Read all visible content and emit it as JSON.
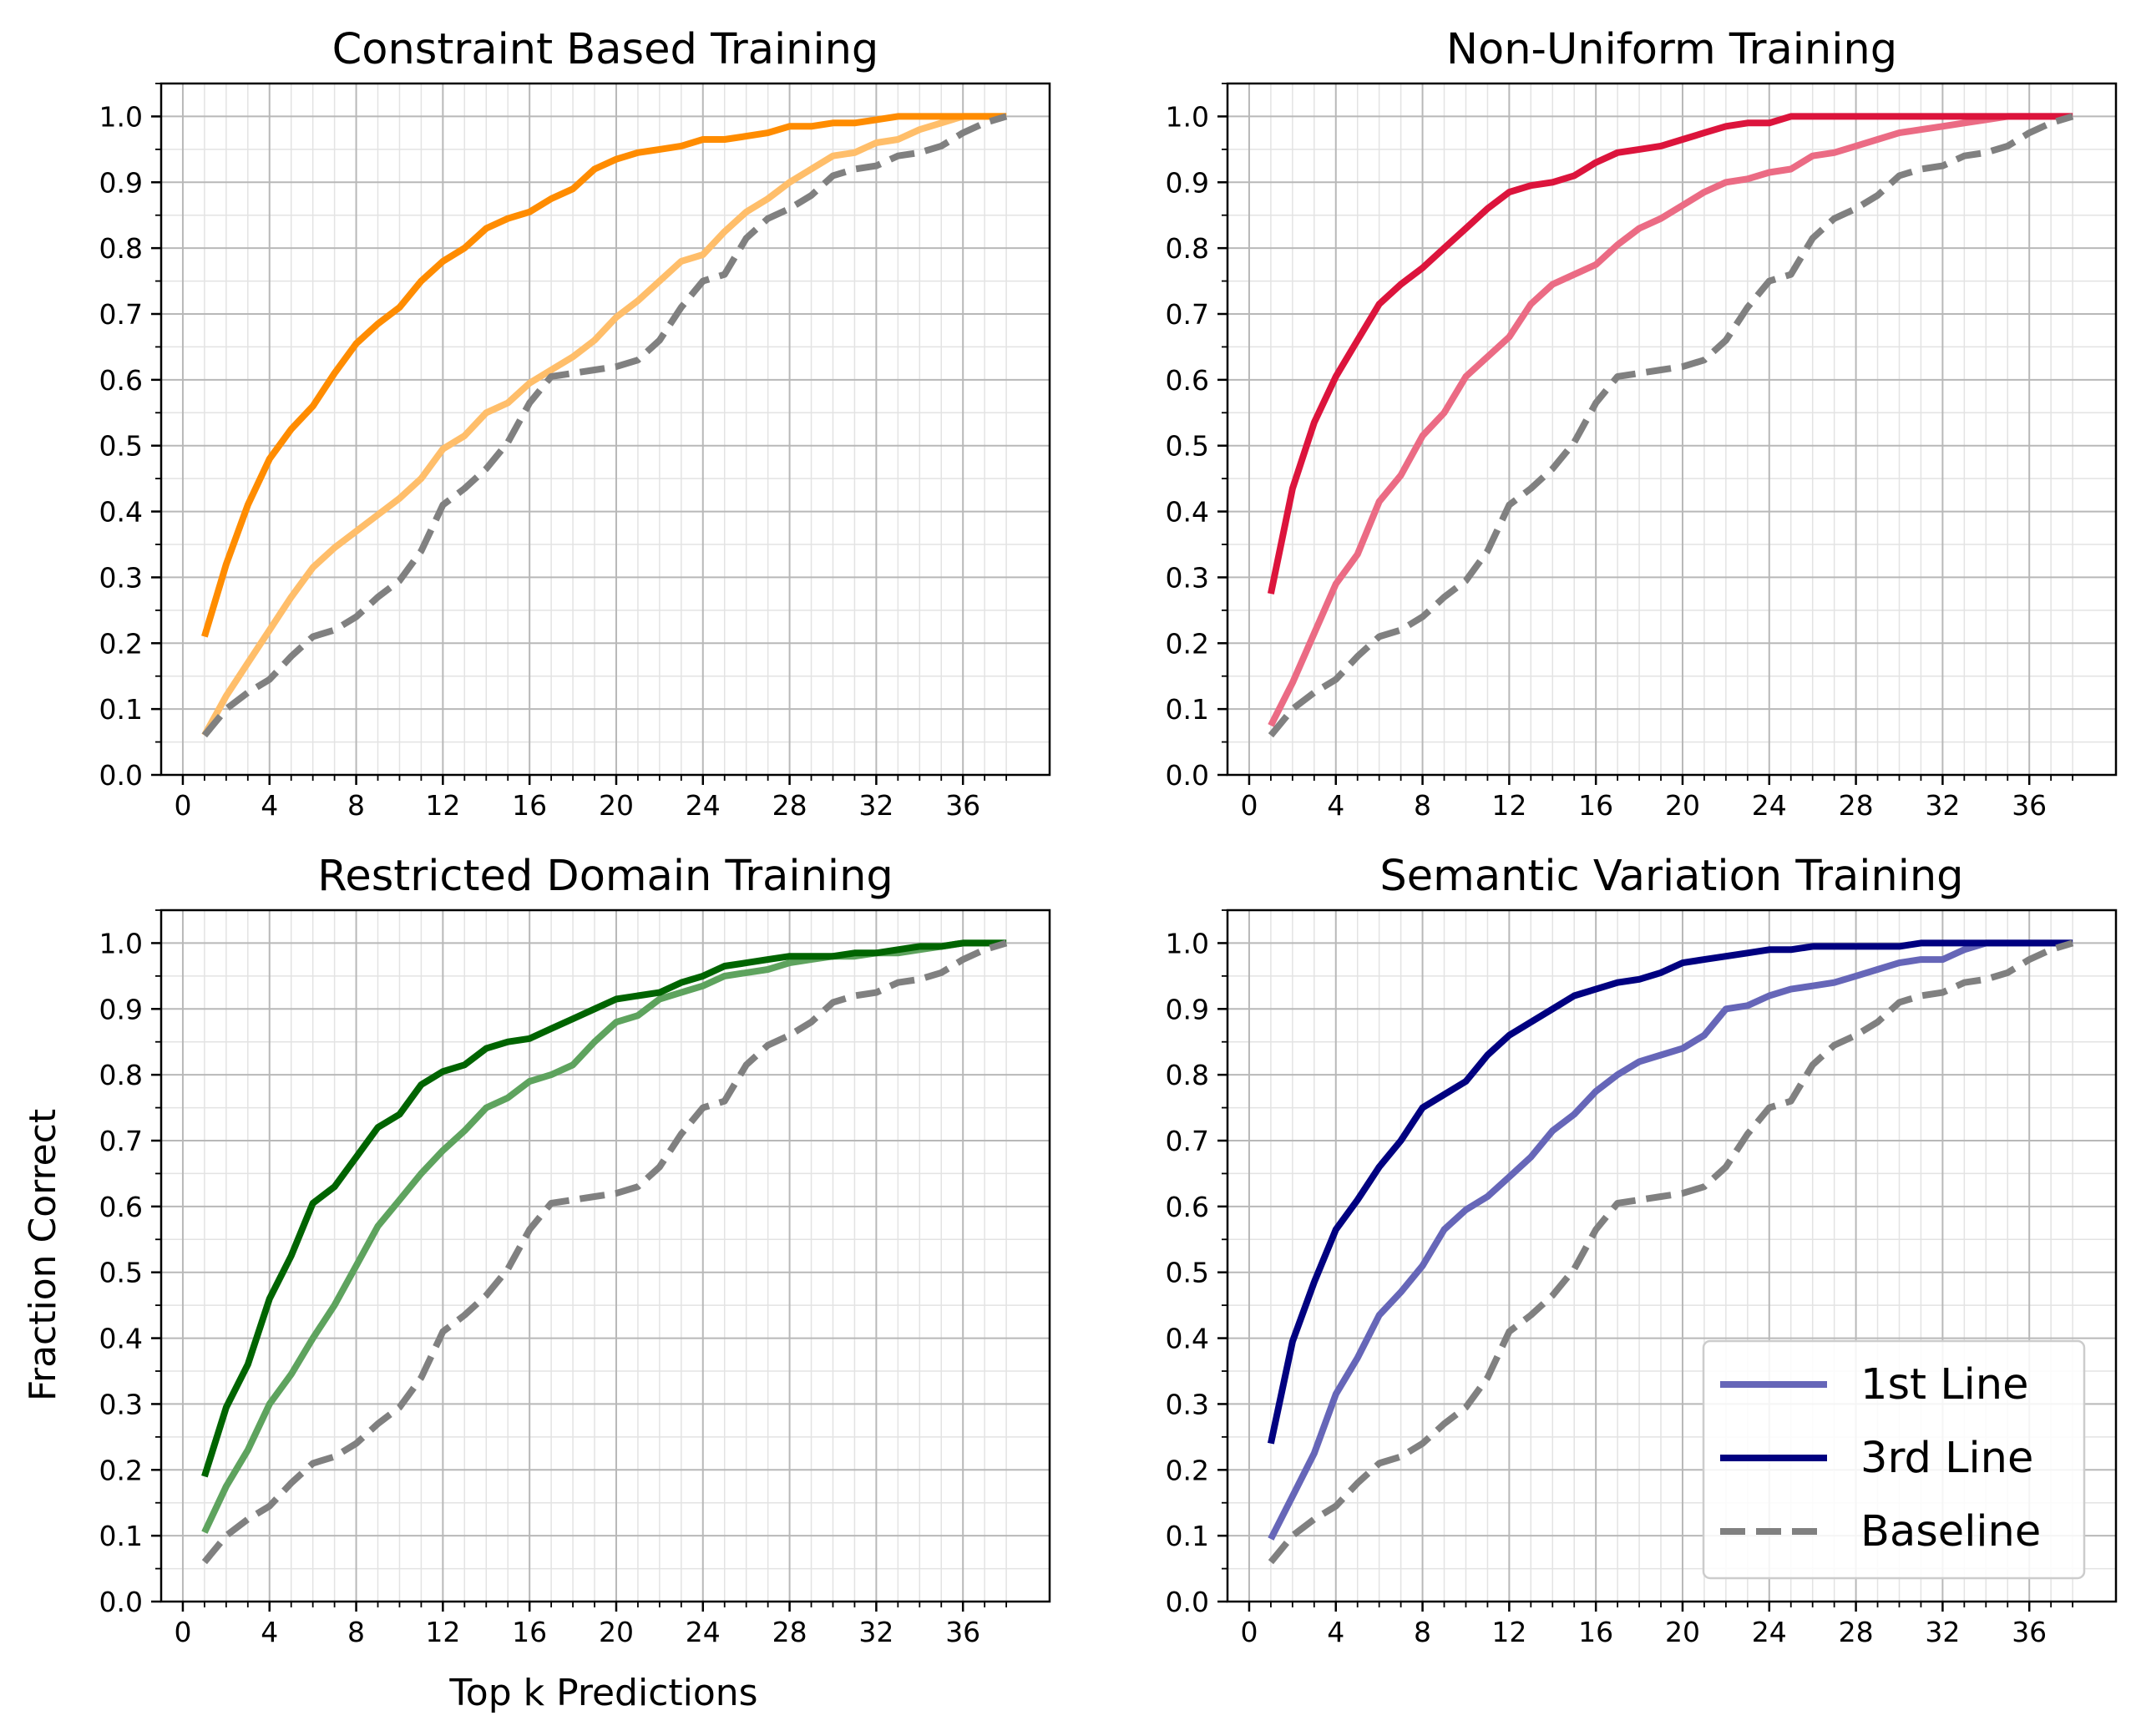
{
  "figure": {
    "ylabel": "Fraction Correct",
    "xlabel": "Top k Predictions"
  },
  "legend": {
    "placement": "lower-right",
    "entries": [
      {
        "label": "1st Line",
        "color": "#6666b8",
        "style": "solid"
      },
      {
        "label": "3rd Line",
        "color": "#000080",
        "style": "solid"
      },
      {
        "label": "Baseline",
        "color": "#808080",
        "style": "dashed"
      }
    ]
  },
  "chart_data": [
    {
      "type": "line",
      "title": "Constraint Based Training",
      "xlim": [
        -1,
        40
      ],
      "ylim": [
        0,
        1.05
      ],
      "xticks": [
        0,
        4,
        8,
        12,
        16,
        20,
        24,
        28,
        32,
        36
      ],
      "yticks": [
        0.0,
        0.1,
        0.2,
        0.3,
        0.4,
        0.5,
        0.6,
        0.7,
        0.8,
        0.9,
        1.0
      ],
      "grid": true,
      "x": [
        1,
        2,
        3,
        4,
        5,
        6,
        7,
        8,
        9,
        10,
        11,
        12,
        13,
        14,
        15,
        16,
        17,
        18,
        19,
        20,
        21,
        22,
        23,
        24,
        25,
        26,
        27,
        28,
        29,
        30,
        31,
        32,
        33,
        34,
        35,
        36,
        37,
        38
      ],
      "series": [
        {
          "name": "1st Line",
          "color": "#ffbe6a",
          "style": "solid",
          "values": [
            0.06,
            0.12,
            0.17,
            0.22,
            0.27,
            0.315,
            0.345,
            0.37,
            0.395,
            0.42,
            0.45,
            0.495,
            0.515,
            0.55,
            0.565,
            0.595,
            0.615,
            0.635,
            0.66,
            0.695,
            0.72,
            0.75,
            0.78,
            0.79,
            0.825,
            0.855,
            0.875,
            0.9,
            0.92,
            0.94,
            0.945,
            0.96,
            0.965,
            0.98,
            0.99,
            1.0,
            1.0,
            1.0
          ]
        },
        {
          "name": "3rd Line",
          "color": "#ff8c00",
          "style": "solid",
          "values": [
            0.21,
            0.32,
            0.41,
            0.48,
            0.525,
            0.56,
            0.61,
            0.655,
            0.685,
            0.71,
            0.75,
            0.78,
            0.8,
            0.83,
            0.845,
            0.855,
            0.875,
            0.89,
            0.92,
            0.935,
            0.945,
            0.95,
            0.955,
            0.965,
            0.965,
            0.97,
            0.975,
            0.985,
            0.985,
            0.99,
            0.99,
            0.995,
            1.0,
            1.0,
            1.0,
            1.0,
            1.0,
            1.0
          ]
        },
        {
          "name": "Baseline",
          "color": "#808080",
          "style": "dashed",
          "values": [
            0.06,
            0.1,
            0.125,
            0.145,
            0.18,
            0.21,
            0.22,
            0.24,
            0.27,
            0.295,
            0.34,
            0.41,
            0.435,
            0.465,
            0.505,
            0.565,
            0.605,
            0.61,
            0.615,
            0.62,
            0.63,
            0.66,
            0.71,
            0.75,
            0.76,
            0.815,
            0.845,
            0.86,
            0.88,
            0.91,
            0.92,
            0.925,
            0.94,
            0.945,
            0.955,
            0.975,
            0.99,
            1.0
          ]
        }
      ]
    },
    {
      "type": "line",
      "title": "Non-Uniform Training",
      "xlim": [
        -1,
        40
      ],
      "ylim": [
        0,
        1.05
      ],
      "xticks": [
        0,
        4,
        8,
        12,
        16,
        20,
        24,
        28,
        32,
        36
      ],
      "yticks": [
        0.0,
        0.1,
        0.2,
        0.3,
        0.4,
        0.5,
        0.6,
        0.7,
        0.8,
        0.9,
        1.0
      ],
      "grid": true,
      "x": [
        1,
        2,
        3,
        4,
        5,
        6,
        7,
        8,
        9,
        10,
        11,
        12,
        13,
        14,
        15,
        16,
        17,
        18,
        19,
        20,
        21,
        22,
        23,
        24,
        25,
        26,
        27,
        28,
        29,
        30,
        31,
        32,
        33,
        34,
        35,
        36,
        37,
        38
      ],
      "series": [
        {
          "name": "1st Line",
          "color": "#eb6b84",
          "style": "solid",
          "values": [
            0.075,
            0.14,
            0.215,
            0.29,
            0.335,
            0.415,
            0.455,
            0.515,
            0.55,
            0.605,
            0.635,
            0.665,
            0.715,
            0.745,
            0.76,
            0.775,
            0.805,
            0.83,
            0.845,
            0.865,
            0.885,
            0.9,
            0.905,
            0.915,
            0.92,
            0.94,
            0.945,
            0.955,
            0.965,
            0.975,
            0.98,
            0.985,
            0.99,
            0.995,
            1.0,
            1.0,
            1.0,
            1.0
          ]
        },
        {
          "name": "3rd Line",
          "color": "#dc143c",
          "style": "solid",
          "values": [
            0.275,
            0.435,
            0.535,
            0.605,
            0.66,
            0.715,
            0.745,
            0.77,
            0.8,
            0.83,
            0.86,
            0.885,
            0.895,
            0.9,
            0.91,
            0.93,
            0.945,
            0.95,
            0.955,
            0.965,
            0.975,
            0.985,
            0.99,
            0.99,
            1.0,
            1.0,
            1.0,
            1.0,
            1.0,
            1.0,
            1.0,
            1.0,
            1.0,
            1.0,
            1.0,
            1.0,
            1.0,
            1.0
          ]
        },
        {
          "name": "Baseline",
          "color": "#808080",
          "style": "dashed",
          "values": [
            0.06,
            0.1,
            0.125,
            0.145,
            0.18,
            0.21,
            0.22,
            0.24,
            0.27,
            0.295,
            0.34,
            0.41,
            0.435,
            0.465,
            0.505,
            0.565,
            0.605,
            0.61,
            0.615,
            0.62,
            0.63,
            0.66,
            0.71,
            0.75,
            0.76,
            0.815,
            0.845,
            0.86,
            0.88,
            0.91,
            0.92,
            0.925,
            0.94,
            0.945,
            0.955,
            0.975,
            0.99,
            1.0
          ]
        }
      ]
    },
    {
      "type": "line",
      "title": "Restricted Domain Training",
      "xlim": [
        -1,
        40
      ],
      "ylim": [
        0,
        1.05
      ],
      "xticks": [
        0,
        4,
        8,
        12,
        16,
        20,
        24,
        28,
        32,
        36
      ],
      "yticks": [
        0.0,
        0.1,
        0.2,
        0.3,
        0.4,
        0.5,
        0.6,
        0.7,
        0.8,
        0.9,
        1.0
      ],
      "grid": true,
      "x": [
        1,
        2,
        3,
        4,
        5,
        6,
        7,
        8,
        9,
        10,
        11,
        12,
        13,
        14,
        15,
        16,
        17,
        18,
        19,
        20,
        21,
        22,
        23,
        24,
        25,
        26,
        27,
        28,
        29,
        30,
        31,
        32,
        33,
        34,
        35,
        36,
        37,
        38
      ],
      "series": [
        {
          "name": "1st Line",
          "color": "#5ea35e",
          "style": "solid",
          "values": [
            0.105,
            0.175,
            0.23,
            0.3,
            0.345,
            0.4,
            0.45,
            0.51,
            0.57,
            0.61,
            0.65,
            0.685,
            0.715,
            0.75,
            0.765,
            0.79,
            0.8,
            0.815,
            0.85,
            0.88,
            0.89,
            0.915,
            0.925,
            0.935,
            0.95,
            0.955,
            0.96,
            0.97,
            0.975,
            0.98,
            0.98,
            0.985,
            0.985,
            0.99,
            0.995,
            1.0,
            1.0,
            1.0
          ]
        },
        {
          "name": "3rd Line",
          "color": "#006400",
          "style": "solid",
          "values": [
            0.19,
            0.295,
            0.36,
            0.46,
            0.525,
            0.605,
            0.63,
            0.675,
            0.72,
            0.74,
            0.785,
            0.805,
            0.815,
            0.84,
            0.85,
            0.855,
            0.87,
            0.885,
            0.9,
            0.915,
            0.92,
            0.925,
            0.94,
            0.95,
            0.965,
            0.97,
            0.975,
            0.98,
            0.98,
            0.98,
            0.985,
            0.985,
            0.99,
            0.995,
            0.995,
            1.0,
            1.0,
            1.0
          ]
        },
        {
          "name": "Baseline",
          "color": "#808080",
          "style": "dashed",
          "values": [
            0.06,
            0.1,
            0.125,
            0.145,
            0.18,
            0.21,
            0.22,
            0.24,
            0.27,
            0.295,
            0.34,
            0.41,
            0.435,
            0.465,
            0.505,
            0.565,
            0.605,
            0.61,
            0.615,
            0.62,
            0.63,
            0.66,
            0.71,
            0.75,
            0.76,
            0.815,
            0.845,
            0.86,
            0.88,
            0.91,
            0.92,
            0.925,
            0.94,
            0.945,
            0.955,
            0.975,
            0.99,
            1.0
          ]
        }
      ]
    },
    {
      "type": "line",
      "title": "Semantic Variation Training",
      "xlim": [
        -1,
        40
      ],
      "ylim": [
        0,
        1.05
      ],
      "xticks": [
        0,
        4,
        8,
        12,
        16,
        20,
        24,
        28,
        32,
        36
      ],
      "yticks": [
        0.0,
        0.1,
        0.2,
        0.3,
        0.4,
        0.5,
        0.6,
        0.7,
        0.8,
        0.9,
        1.0
      ],
      "grid": true,
      "x": [
        1,
        2,
        3,
        4,
        5,
        6,
        7,
        8,
        9,
        10,
        11,
        12,
        13,
        14,
        15,
        16,
        17,
        18,
        19,
        20,
        21,
        22,
        23,
        24,
        25,
        26,
        27,
        28,
        29,
        30,
        31,
        32,
        33,
        34,
        35,
        36,
        37,
        38
      ],
      "series": [
        {
          "name": "1st Line",
          "color": "#6666b8",
          "style": "solid",
          "values": [
            0.095,
            0.16,
            0.225,
            0.315,
            0.37,
            0.435,
            0.47,
            0.51,
            0.565,
            0.595,
            0.615,
            0.645,
            0.675,
            0.715,
            0.74,
            0.775,
            0.8,
            0.82,
            0.83,
            0.84,
            0.86,
            0.9,
            0.905,
            0.92,
            0.93,
            0.935,
            0.94,
            0.95,
            0.96,
            0.97,
            0.975,
            0.975,
            0.99,
            1.0,
            1.0,
            1.0,
            1.0,
            1.0
          ]
        },
        {
          "name": "3rd Line",
          "color": "#000080",
          "style": "solid",
          "values": [
            0.24,
            0.395,
            0.485,
            0.565,
            0.61,
            0.66,
            0.7,
            0.75,
            0.77,
            0.79,
            0.83,
            0.86,
            0.88,
            0.9,
            0.92,
            0.93,
            0.94,
            0.945,
            0.955,
            0.97,
            0.975,
            0.98,
            0.985,
            0.99,
            0.99,
            0.995,
            0.995,
            0.995,
            0.995,
            0.995,
            1.0,
            1.0,
            1.0,
            1.0,
            1.0,
            1.0,
            1.0,
            1.0
          ]
        },
        {
          "name": "Baseline",
          "color": "#808080",
          "style": "dashed",
          "values": [
            0.06,
            0.1,
            0.125,
            0.145,
            0.18,
            0.21,
            0.22,
            0.24,
            0.27,
            0.295,
            0.34,
            0.41,
            0.435,
            0.465,
            0.505,
            0.565,
            0.605,
            0.61,
            0.615,
            0.62,
            0.63,
            0.66,
            0.71,
            0.75,
            0.76,
            0.815,
            0.845,
            0.86,
            0.88,
            0.91,
            0.92,
            0.925,
            0.94,
            0.945,
            0.955,
            0.975,
            0.99,
            1.0
          ]
        }
      ]
    }
  ]
}
